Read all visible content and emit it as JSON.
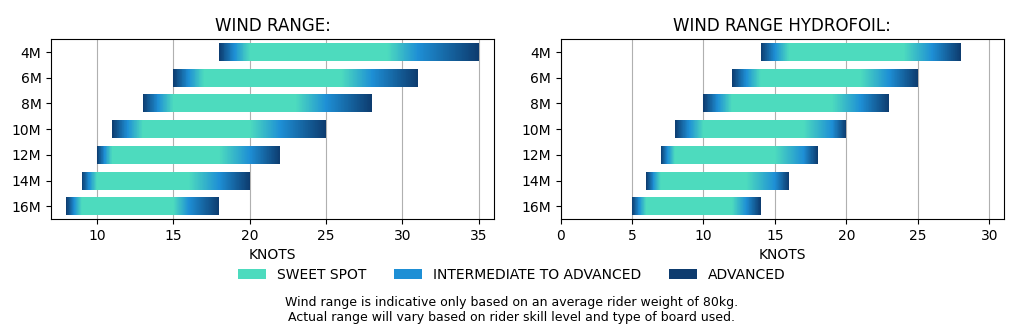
{
  "chart_data": [
    {
      "type": "bar",
      "orientation": "horizontal",
      "title": "WIND RANGE:",
      "xlabel": "KNOTS",
      "categories": [
        "4M",
        "6M",
        "8M",
        "10M",
        "12M",
        "14M",
        "16M"
      ],
      "adv_start": [
        18,
        15,
        13,
        11,
        10,
        9,
        8
      ],
      "inter_start": [
        19,
        16,
        14,
        12,
        10.5,
        9.5,
        8.5
      ],
      "sweet_start": [
        20,
        17,
        15,
        13,
        11,
        10,
        9
      ],
      "sweet_end": [
        29,
        26,
        23,
        20,
        18,
        16,
        15
      ],
      "inter_end": [
        31,
        28,
        25,
        22,
        20,
        18,
        16
      ],
      "adv_end": [
        35,
        31,
        28,
        25,
        22,
        20,
        18
      ],
      "xlim": [
        7,
        36
      ],
      "xticks": [
        10,
        15,
        20,
        25,
        30,
        35
      ],
      "grid": true
    },
    {
      "type": "bar",
      "orientation": "horizontal",
      "title": "WIND RANGE HYDROFOIL:",
      "xlabel": "KNOTS",
      "categories": [
        "4M",
        "6M",
        "8M",
        "10M",
        "12M",
        "14M",
        "16M"
      ],
      "adv_start": [
        14,
        12,
        10,
        8,
        7,
        6,
        5
      ],
      "inter_start": [
        15,
        13,
        11,
        9,
        7.5,
        6.5,
        5.5
      ],
      "sweet_start": [
        16,
        14,
        12,
        10,
        8,
        7,
        6
      ],
      "sweet_end": [
        24,
        21,
        19,
        17,
        15,
        13,
        12
      ],
      "inter_end": [
        26,
        23,
        21,
        19,
        17,
        15,
        13
      ],
      "adv_end": [
        28,
        25,
        23,
        20,
        18,
        16,
        14
      ],
      "xlim": [
        0,
        31
      ],
      "xticks": [
        0,
        5,
        10,
        15,
        20,
        25,
        30
      ],
      "grid": true
    }
  ],
  "series": [
    {
      "name": "SWEET SPOT",
      "color": "#4DDBBE"
    },
    {
      "name": "INTERMEDIATE TO ADVANCED",
      "color": "#1E8FD5"
    },
    {
      "name": "ADVANCED",
      "color": "#0D3B6E"
    }
  ],
  "legend": "lower center",
  "annotations": [
    "Wind range is indicative only based on an average rider weight of 80kg.",
    "Actual range will vary based on rider skill level and type of board used."
  ]
}
